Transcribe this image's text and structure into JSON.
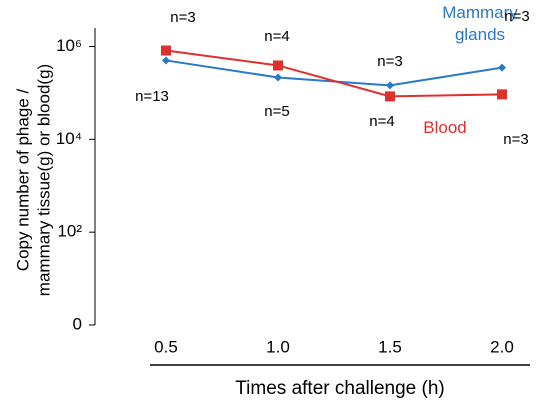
{
  "chart_data": {
    "type": "line",
    "y_label": [
      "Copy number of phage /",
      "mammary tissue(g) or blood(g)"
    ],
    "x_label": "Times after challenge (h)",
    "categories": [
      "0.5",
      "1.0",
      "1.5",
      "2.0"
    ],
    "log_y": true,
    "ylim": [
      1,
      2500000
    ],
    "yticks": [
      {
        "value": 1,
        "label": "0"
      },
      {
        "value": 100,
        "label": "10²"
      },
      {
        "value": 10000,
        "label": "10⁴"
      },
      {
        "value": 1000000,
        "label": "10⁶"
      }
    ],
    "series": [
      {
        "name": "Mammary glands",
        "color": "#2a78c8",
        "marker": "diamond",
        "values": [
          500000,
          215000,
          145000,
          350000
        ]
      },
      {
        "name": "Blood",
        "color": "#e0302e",
        "marker": "square",
        "values": [
          820000,
          390000,
          84000,
          93000
        ]
      }
    ],
    "annotations": [
      "n=3",
      "n=13",
      "n=4",
      "n=5",
      "n=3",
      "n=4",
      "n=3",
      "n=3"
    ]
  }
}
